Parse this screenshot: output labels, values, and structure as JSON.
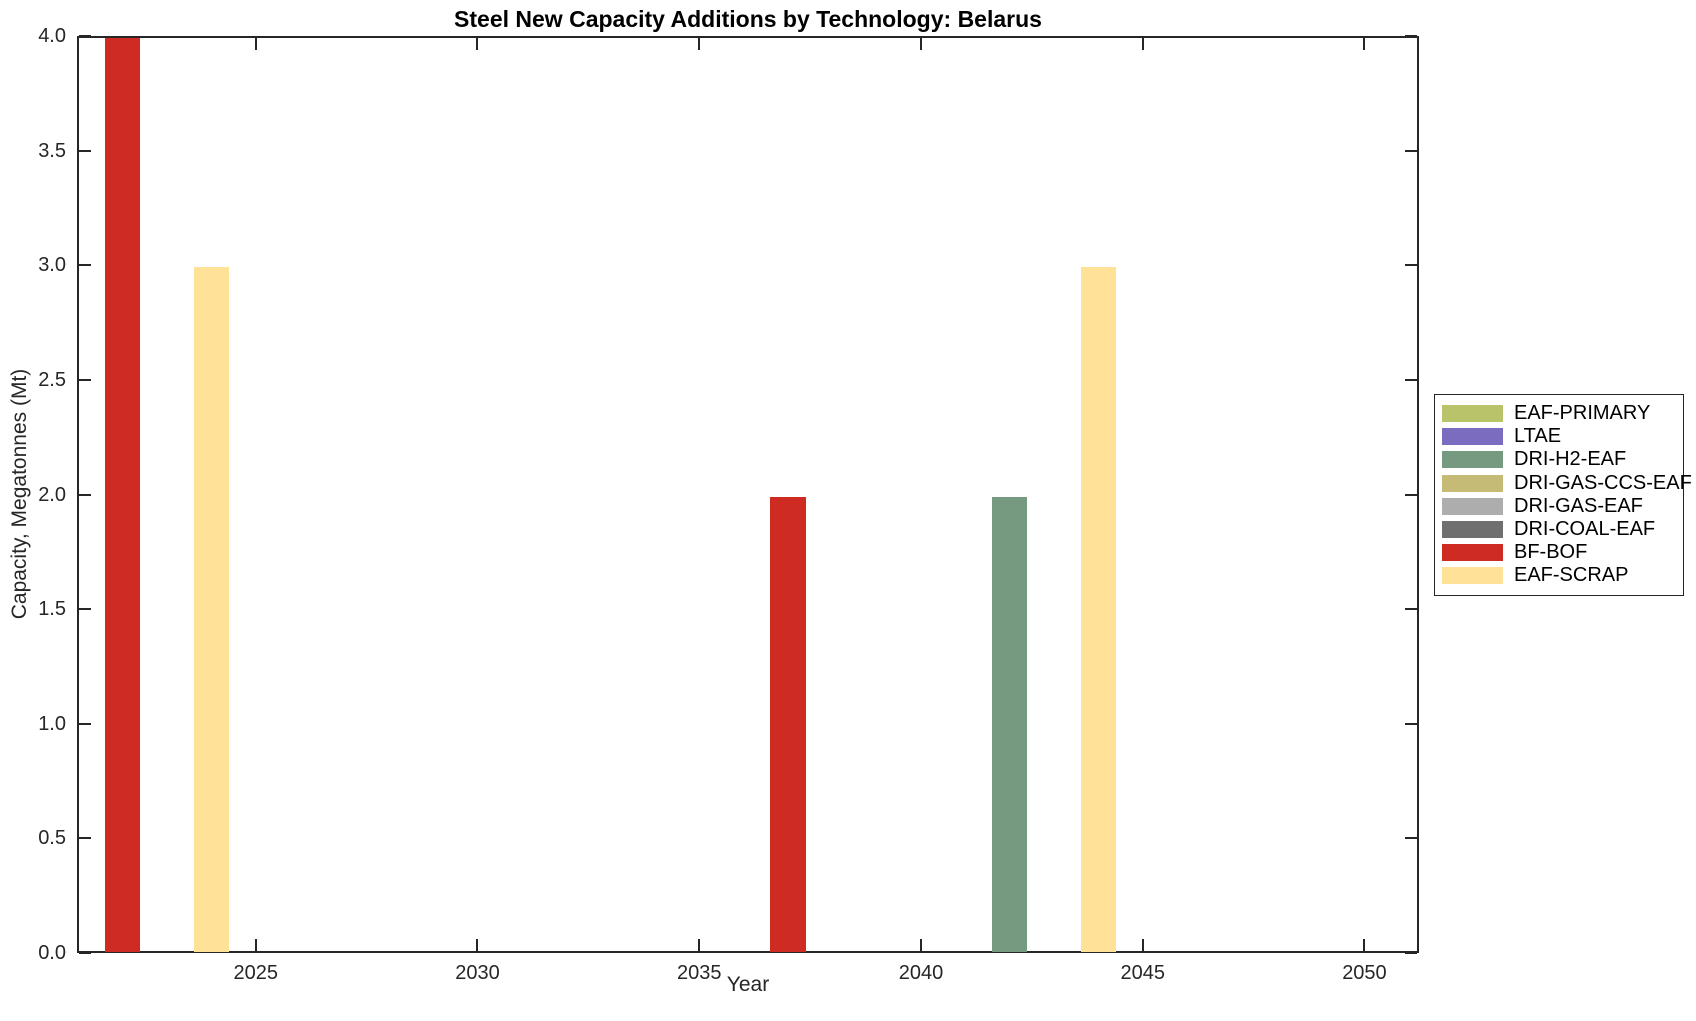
{
  "chart_data": {
    "type": "bar",
    "title": "Steel New Capacity Additions by Technology: Belarus",
    "xlabel": "Year",
    "ylabel": "Capacity, Megatonnes (Mt)",
    "xlim": [
      2020.97,
      2051.23
    ],
    "ylim": [
      0,
      4
    ],
    "xticks": [
      2025,
      2030,
      2035,
      2040,
      2045,
      2050
    ],
    "yticks": [
      0,
      0.5,
      1,
      1.5,
      2,
      2.5,
      3,
      3.5,
      4
    ],
    "ytick_labels": [
      "0.0",
      "0.5",
      "1.0",
      "1.5",
      "2.0",
      "2.5",
      "3.0",
      "3.5",
      "4.0"
    ],
    "bar_width_years": 0.8,
    "grid": false,
    "legend_position": "right-outside",
    "bars": [
      {
        "year": 2022,
        "value": 4.0,
        "technology": "BF-BOF"
      },
      {
        "year": 2024,
        "value": 3.0,
        "technology": "EAF-SCRAP"
      },
      {
        "year": 2037,
        "value": 2.0,
        "technology": "BF-BOF"
      },
      {
        "year": 2042,
        "value": 2.0,
        "technology": "DRI-H2-EAF"
      },
      {
        "year": 2044,
        "value": 3.0,
        "technology": "EAF-SCRAP"
      }
    ],
    "legend": [
      {
        "label": "EAF-PRIMARY",
        "color": "#B9C36A"
      },
      {
        "label": "LTAE",
        "color": "#7B6CBF"
      },
      {
        "label": "DRI-H2-EAF",
        "color": "#759A7F"
      },
      {
        "label": "DRI-GAS-CCS-EAF",
        "color": "#C5BA76"
      },
      {
        "label": "DRI-GAS-EAF",
        "color": "#ADADAD"
      },
      {
        "label": "DRI-COAL-EAF",
        "color": "#6F6F6F"
      },
      {
        "label": "BF-BOF",
        "color": "#CE2B22"
      },
      {
        "label": "EAF-SCRAP",
        "color": "#FFE297"
      }
    ],
    "colors": {
      "axis": "#262626",
      "background": "#FFFFFF"
    }
  }
}
